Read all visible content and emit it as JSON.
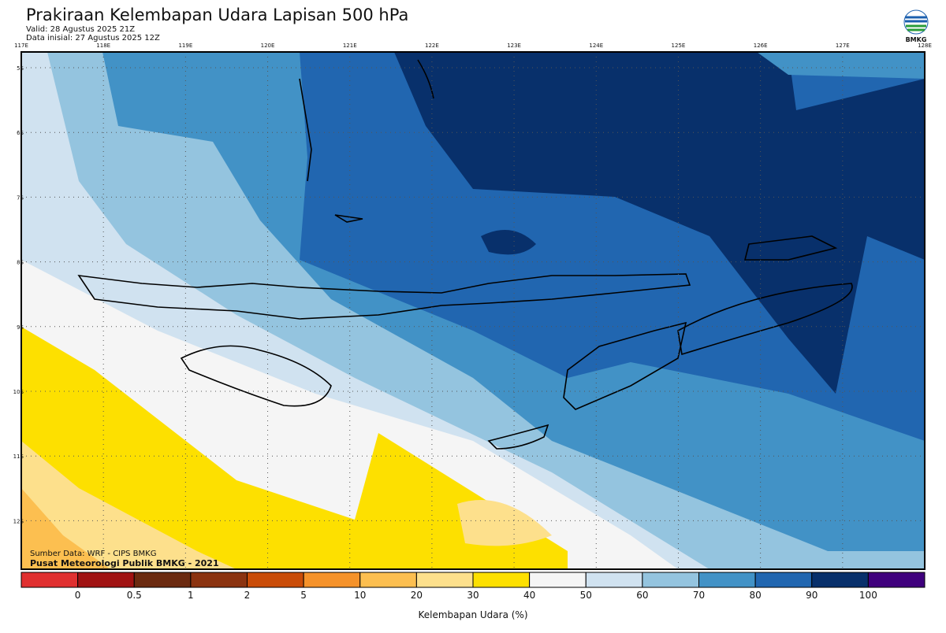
{
  "header": {
    "title": "Prakiraan Kelembapan Udara Lapisan 500 hPa",
    "valid": "Valid: 28 Agustus 2025 21Z",
    "initial": "Data inisial: 27 Agustus 2025 12Z",
    "logo": "BMKG"
  },
  "map": {
    "lon_labels": [
      "117E",
      "118E",
      "119E",
      "120E",
      "121E",
      "122E",
      "123E",
      "124E",
      "125E",
      "126E",
      "127E",
      "128E"
    ],
    "lat_labels": [
      "5S",
      "6S",
      "7S",
      "8S",
      "9S",
      "10S",
      "11S",
      "12S"
    ]
  },
  "credits": {
    "source": "Sumber Data: WRF - CIPS BMKG",
    "producer": "Pusat Meteorologi Publik BMKG - 2021"
  },
  "colorbar": {
    "colors": [
      "#e03030",
      "#a01212",
      "#6b2a10",
      "#8b3310",
      "#c94c08",
      "#f5922a",
      "#fcbf50",
      "#fde08c",
      "#fde000",
      "#f5f5f5",
      "#d0e2f0",
      "#94c4df",
      "#4292c6",
      "#2166b0",
      "#08306b",
      "#3f007d"
    ],
    "labels": [
      "0",
      "0.5",
      "1",
      "2",
      "5",
      "10",
      "20",
      "30",
      "40",
      "50",
      "60",
      "70",
      "80",
      "90",
      "100"
    ],
    "title": "Kelembapan Udara (%)"
  }
}
